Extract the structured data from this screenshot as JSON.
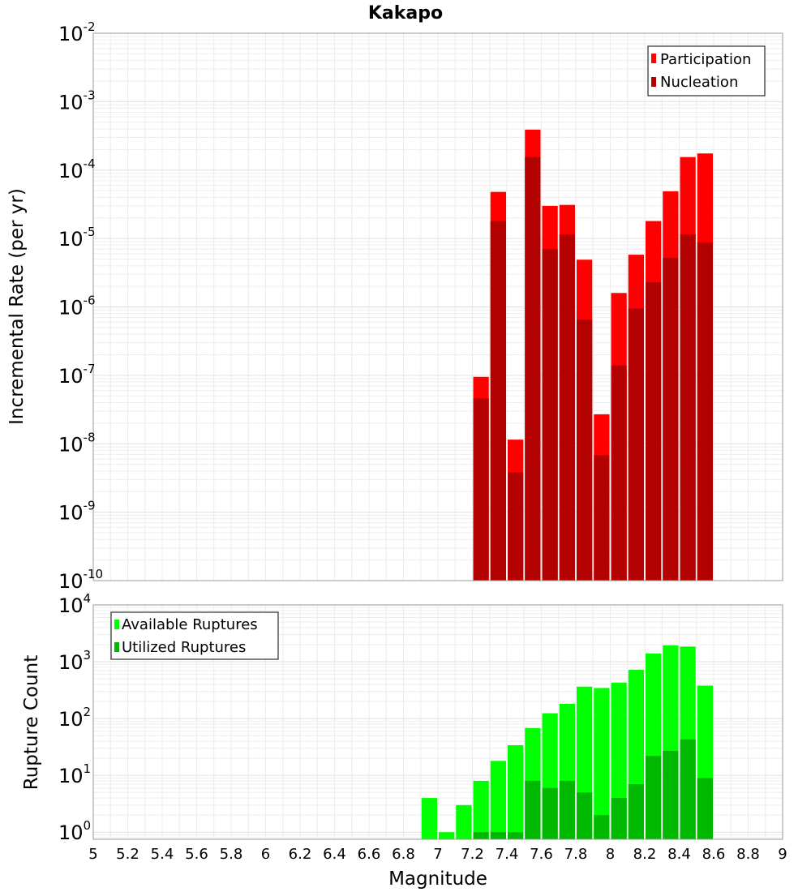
{
  "chart_data": [
    {
      "type": "bar",
      "title": "Kakapo",
      "ylabel": "Incremental Rate (per yr)",
      "xlabel": "",
      "xlim": [
        5,
        9
      ],
      "ylim": [
        1e-10,
        0.01
      ],
      "yscale": "log",
      "bar_width": 0.1,
      "grid": true,
      "legend_position": "top-right",
      "x": [
        7.25,
        7.35,
        7.45,
        7.55,
        7.65,
        7.75,
        7.85,
        7.95,
        8.05,
        8.15,
        8.25,
        8.35,
        8.45,
        8.55
      ],
      "series": [
        {
          "name": "Participation",
          "color": "#ff0000",
          "values": [
            9.5e-08,
            4.8e-05,
            1.15e-08,
            0.00039,
            3e-05,
            3.1e-05,
            4.9e-06,
            2.7e-08,
            1.6e-06,
            5.8e-06,
            1.8e-05,
            4.9e-05,
            0.000155,
            0.000175
          ]
        },
        {
          "name": "Nucleation",
          "color": "#b30000",
          "values": [
            4.6e-08,
            1.8e-05,
            3.8e-09,
            0.000155,
            7e-06,
            1.15e-05,
            6.5e-07,
            6.8e-09,
            1.4e-07,
            9.5e-07,
            2.3e-06,
            5.2e-06,
            1.15e-05,
            8.8e-06
          ]
        }
      ],
      "y_tick_labels": [
        {
          "base": "10",
          "exp": "-2"
        },
        {
          "base": "10",
          "exp": "-3"
        },
        {
          "base": "10",
          "exp": "-4"
        },
        {
          "base": "10",
          "exp": "-5"
        },
        {
          "base": "10",
          "exp": "-6"
        },
        {
          "base": "10",
          "exp": "-7"
        },
        {
          "base": "10",
          "exp": "-8"
        },
        {
          "base": "10",
          "exp": "-9"
        },
        {
          "base": "10",
          "exp": "-10"
        }
      ]
    },
    {
      "type": "bar",
      "title": "",
      "ylabel": "Rupture Count",
      "xlabel": "Magnitude",
      "xlim": [
        5,
        9
      ],
      "ylim": [
        0.75,
        10000.0
      ],
      "yscale": "log",
      "bar_width": 0.1,
      "grid": true,
      "legend_position": "top-left",
      "x": [
        6.95,
        7.05,
        7.15,
        7.25,
        7.35,
        7.45,
        7.55,
        7.65,
        7.75,
        7.85,
        7.95,
        8.05,
        8.15,
        8.25,
        8.35,
        8.45,
        8.55
      ],
      "series": [
        {
          "name": "Available Ruptures",
          "color": "#00ff00",
          "values": [
            4,
            1,
            3,
            8,
            18,
            34,
            68,
            124,
            182,
            365,
            345,
            430,
            720,
            1400,
            1950,
            1850,
            380
          ]
        },
        {
          "name": "Utilized Ruptures",
          "color": "#00b800",
          "values": [
            0,
            0,
            0,
            1,
            1,
            1,
            8,
            6,
            8,
            5,
            2,
            4,
            7,
            22,
            27,
            43,
            9
          ]
        }
      ],
      "y_tick_labels": [
        {
          "base": "10",
          "exp": "4"
        },
        {
          "base": "10",
          "exp": "3"
        },
        {
          "base": "10",
          "exp": "2"
        },
        {
          "base": "10",
          "exp": "1"
        },
        {
          "base": "10",
          "exp": "0"
        }
      ],
      "x_tick_labels": [
        "5",
        "5.2",
        "5.4",
        "5.6",
        "5.8",
        "6",
        "6.2",
        "6.4",
        "6.6",
        "6.8",
        "7",
        "7.2",
        "7.4",
        "7.6",
        "7.8",
        "8",
        "8.2",
        "8.4",
        "8.6",
        "8.8",
        "9"
      ]
    }
  ]
}
